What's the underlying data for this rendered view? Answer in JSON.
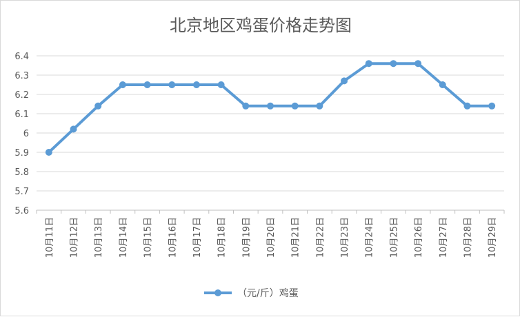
{
  "chart_data": {
    "type": "line",
    "title": "北京地区鸡蛋价格走势图",
    "categories": [
      "10月11日",
      "10月12日",
      "10月13日",
      "10月14日",
      "10月15日",
      "10月16日",
      "10月17日",
      "10月18日",
      "10月19日",
      "10月20日",
      "10月21日",
      "10月22日",
      "10月23日",
      "10月24日",
      "10月25日",
      "10月26日",
      "10月27日",
      "10月28日",
      "10月29日"
    ],
    "series": [
      {
        "name": "（元/斤）鸡蛋",
        "values": [
          5.9,
          6.02,
          6.14,
          6.25,
          6.25,
          6.25,
          6.25,
          6.25,
          6.14,
          6.14,
          6.14,
          6.14,
          6.27,
          6.36,
          6.36,
          6.36,
          6.25,
          6.14,
          6.14
        ]
      }
    ],
    "ylim": [
      5.6,
      6.4
    ],
    "yticks": [
      "5.6",
      "5.7",
      "5.8",
      "5.9",
      "6",
      "6.1",
      "6.2",
      "6.3",
      "6.4"
    ],
    "grid": true,
    "legend": "bottom",
    "color": "#5b9bd5"
  }
}
